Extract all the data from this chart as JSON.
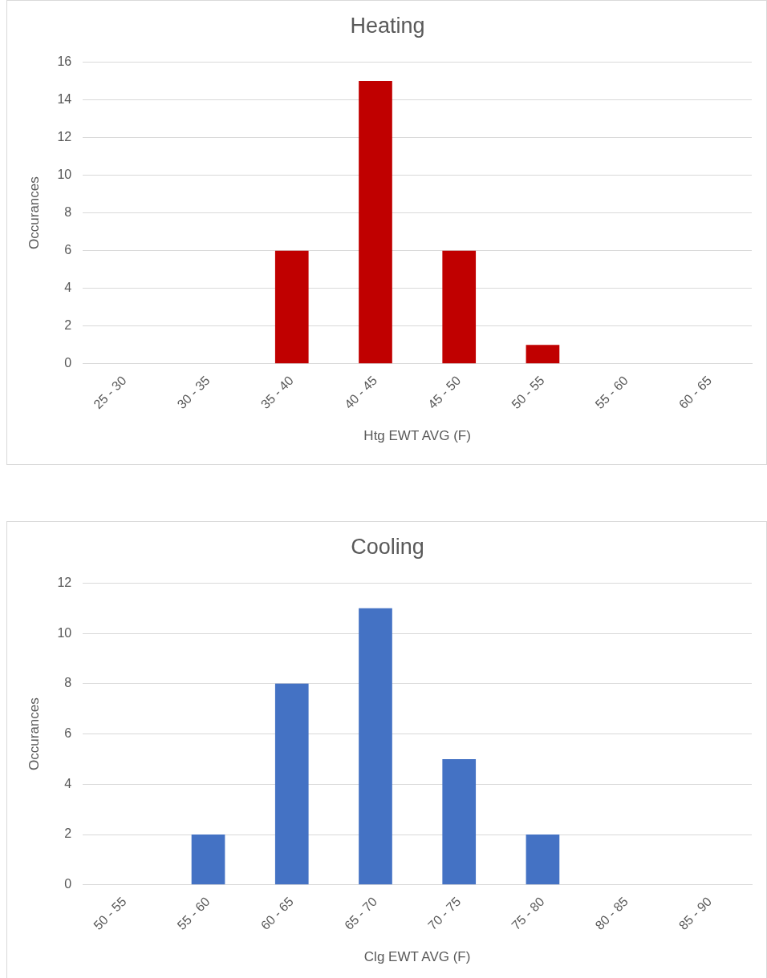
{
  "chart_data": [
    {
      "type": "bar",
      "title": "Heating",
      "xlabel": "Htg EWT AVG (F)",
      "ylabel": "Occurances",
      "categories": [
        "25 - 30",
        "30 - 35",
        "35 - 40",
        "40 - 45",
        "45 - 50",
        "50 - 55",
        "55 - 60",
        "60 - 65"
      ],
      "values": [
        0,
        0,
        6,
        15,
        6,
        1,
        0,
        0
      ],
      "color": "#c00000",
      "ylim": [
        0,
        16
      ],
      "yticks": [
        0,
        2,
        4,
        6,
        8,
        10,
        12,
        14,
        16
      ],
      "grid": "y"
    },
    {
      "type": "bar",
      "title": "Cooling",
      "xlabel": "Clg EWT AVG (F)",
      "ylabel": "Occurances",
      "categories": [
        "50 - 55",
        "55 - 60",
        "60 - 65",
        "65 - 70",
        "70 - 75",
        "75 - 80",
        "80 - 85",
        "85 - 90"
      ],
      "values": [
        0,
        2,
        8,
        11,
        5,
        2,
        0,
        0
      ],
      "color": "#4472c4",
      "ylim": [
        0,
        12
      ],
      "yticks": [
        0,
        2,
        4,
        6,
        8,
        10,
        12
      ],
      "grid": "y"
    }
  ]
}
